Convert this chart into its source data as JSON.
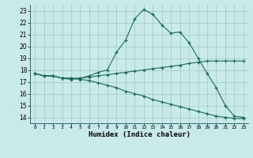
{
  "title": "",
  "xlabel": "Humidex (Indice chaleur)",
  "bg_color": "#c8eaea",
  "grid_color": "#a8cccc",
  "line_color": "#1a6b5a",
  "xlim": [
    -0.5,
    23.5
  ],
  "ylim": [
    13.5,
    23.5
  ],
  "xticks": [
    0,
    1,
    2,
    3,
    4,
    5,
    6,
    7,
    8,
    9,
    10,
    11,
    12,
    13,
    14,
    15,
    16,
    17,
    18,
    19,
    20,
    21,
    22,
    23
  ],
  "yticks": [
    14,
    15,
    16,
    17,
    18,
    19,
    20,
    21,
    22,
    23
  ],
  "line1_x": [
    0,
    1,
    2,
    3,
    4,
    5,
    6,
    7,
    8,
    9,
    10,
    11,
    12,
    13,
    14,
    15,
    16,
    17,
    18,
    19,
    20,
    21,
    22,
    23
  ],
  "line1_y": [
    17.7,
    17.5,
    17.5,
    17.3,
    17.2,
    17.3,
    17.5,
    17.8,
    18.0,
    19.5,
    20.5,
    22.3,
    23.1,
    22.7,
    21.8,
    21.1,
    21.2,
    20.3,
    19.0,
    17.7,
    16.5,
    15.0,
    14.1,
    14.0
  ],
  "line2_x": [
    0,
    1,
    2,
    3,
    4,
    5,
    6,
    7,
    8,
    9,
    10,
    11,
    12,
    13,
    14,
    15,
    16,
    17,
    18,
    19,
    20,
    21,
    22,
    23
  ],
  "line2_y": [
    17.7,
    17.5,
    17.5,
    17.3,
    17.3,
    17.3,
    17.4,
    17.5,
    17.6,
    17.7,
    17.8,
    17.9,
    18.0,
    18.1,
    18.2,
    18.3,
    18.4,
    18.55,
    18.65,
    18.75,
    18.75,
    18.75,
    18.75,
    18.75
  ],
  "line3_x": [
    0,
    1,
    2,
    3,
    4,
    5,
    6,
    7,
    8,
    9,
    10,
    11,
    12,
    13,
    14,
    15,
    16,
    17,
    18,
    19,
    20,
    21,
    22,
    23
  ],
  "line3_y": [
    17.7,
    17.5,
    17.5,
    17.3,
    17.3,
    17.2,
    17.1,
    16.9,
    16.7,
    16.5,
    16.2,
    16.0,
    15.8,
    15.5,
    15.3,
    15.1,
    14.9,
    14.7,
    14.5,
    14.3,
    14.1,
    14.0,
    13.9,
    13.9
  ]
}
